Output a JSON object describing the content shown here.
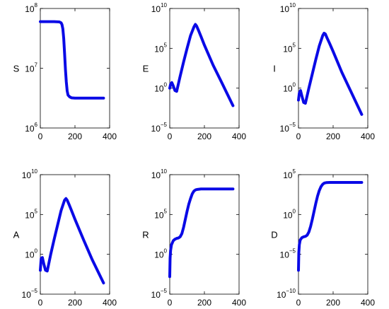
{
  "chart_data": [
    {
      "type": "line",
      "ylabel": "S",
      "yscale": "log",
      "ylim_exp": [
        6,
        8
      ],
      "yticks_exp": [
        6,
        7,
        8
      ],
      "xlim": [
        0,
        400
      ],
      "xticks": [
        0,
        200,
        400
      ],
      "series": [
        {
          "color": "#0a0ae6",
          "x": [
            0,
            40,
            80,
            110,
            120,
            125,
            130,
            135,
            140,
            145,
            150,
            155,
            160,
            170,
            180,
            200,
            250,
            300,
            365
          ],
          "y_log10": [
            7.78,
            7.78,
            7.78,
            7.775,
            7.76,
            7.73,
            7.66,
            7.5,
            7.25,
            6.98,
            6.77,
            6.62,
            6.55,
            6.52,
            6.505,
            6.5,
            6.5,
            6.5,
            6.5
          ]
        }
      ]
    },
    {
      "type": "line",
      "ylabel": "E",
      "yscale": "log",
      "ylim_exp": [
        -5,
        10
      ],
      "yticks_exp": [
        -5,
        0,
        5,
        10
      ],
      "xlim": [
        0,
        400
      ],
      "xticks": [
        0,
        200,
        400
      ],
      "series": [
        {
          "color": "#0a0ae6",
          "x": [
            0,
            5,
            12,
            20,
            30,
            40,
            60,
            80,
            100,
            120,
            140,
            148,
            155,
            165,
            180,
            200,
            250,
            300,
            365
          ],
          "y_log10": [
            0.0,
            0.5,
            0.7,
            0.3,
            -0.3,
            -0.4,
            1.5,
            3.3,
            5.0,
            6.6,
            7.7,
            8.0,
            7.8,
            7.3,
            6.5,
            5.4,
            2.9,
            0.7,
            -2.2
          ]
        }
      ]
    },
    {
      "type": "line",
      "ylabel": "I",
      "yscale": "log",
      "ylim_exp": [
        -5,
        10
      ],
      "yticks_exp": [
        -5,
        0,
        5,
        10
      ],
      "xlim": [
        0,
        400
      ],
      "xticks": [
        0,
        200,
        400
      ],
      "series": [
        {
          "color": "#0a0ae6",
          "x": [
            0,
            5,
            12,
            20,
            30,
            40,
            60,
            80,
            100,
            120,
            140,
            148,
            155,
            165,
            180,
            200,
            250,
            300,
            365
          ],
          "y_log10": [
            -1.5,
            -0.6,
            -0.3,
            -1.0,
            -1.8,
            -1.9,
            0.0,
            1.8,
            3.6,
            5.3,
            6.6,
            6.9,
            6.8,
            6.3,
            5.6,
            4.6,
            2.0,
            -0.3,
            -3.3
          ]
        }
      ]
    },
    {
      "type": "line",
      "ylabel": "A",
      "yscale": "log",
      "ylim_exp": [
        -5,
        10
      ],
      "yticks_exp": [
        -5,
        0,
        5,
        10
      ],
      "xlim": [
        0,
        400
      ],
      "xticks": [
        0,
        200,
        400
      ],
      "series": [
        {
          "color": "#0a0ae6",
          "x": [
            0,
            5,
            12,
            20,
            30,
            40,
            60,
            80,
            100,
            120,
            140,
            148,
            155,
            165,
            180,
            200,
            250,
            300,
            365
          ],
          "y_log10": [
            -2.0,
            -0.5,
            -0.4,
            -1.2,
            -2.0,
            -2.1,
            0.0,
            1.9,
            3.7,
            5.5,
            6.8,
            7.0,
            6.8,
            6.3,
            5.5,
            4.4,
            1.8,
            -0.7,
            -3.6
          ]
        }
      ]
    },
    {
      "type": "line",
      "ylabel": "R",
      "yscale": "log",
      "ylim_exp": [
        -5,
        10
      ],
      "yticks_exp": [
        -5,
        0,
        5,
        10
      ],
      "xlim": [
        0,
        400
      ],
      "xticks": [
        0,
        200,
        400
      ],
      "series": [
        {
          "color": "#0a0ae6",
          "x": [
            0,
            2,
            5,
            10,
            20,
            30,
            40,
            50,
            60,
            70,
            80,
            90,
            100,
            110,
            120,
            130,
            140,
            150,
            160,
            180,
            200,
            250,
            300,
            365
          ],
          "y_log10": [
            -2.8,
            -0.5,
            0.5,
            1.2,
            1.7,
            1.9,
            2.0,
            2.05,
            2.2,
            2.6,
            3.4,
            4.4,
            5.4,
            6.3,
            7.0,
            7.6,
            7.95,
            8.1,
            8.15,
            8.2,
            8.2,
            8.2,
            8.2,
            8.2
          ]
        }
      ]
    },
    {
      "type": "line",
      "ylabel": "D",
      "yscale": "log",
      "ylim_exp": [
        -10,
        5
      ],
      "yticks_exp": [
        -10,
        -5,
        0,
        5
      ],
      "xlim": [
        0,
        400
      ],
      "xticks": [
        0,
        200,
        400
      ],
      "series": [
        {
          "color": "#0a0ae6",
          "x": [
            0,
            2,
            5,
            10,
            20,
            30,
            40,
            50,
            60,
            70,
            80,
            90,
            100,
            110,
            120,
            130,
            140,
            150,
            160,
            180,
            200,
            250,
            300,
            365
          ],
          "y_log10": [
            -7.0,
            -4.8,
            -3.8,
            -3.2,
            -2.9,
            -2.8,
            -2.75,
            -2.6,
            -2.2,
            -1.5,
            -0.6,
            0.4,
            1.4,
            2.3,
            3.0,
            3.5,
            3.8,
            3.95,
            4.0,
            4.02,
            4.02,
            4.02,
            4.02,
            4.02
          ]
        }
      ]
    }
  ]
}
